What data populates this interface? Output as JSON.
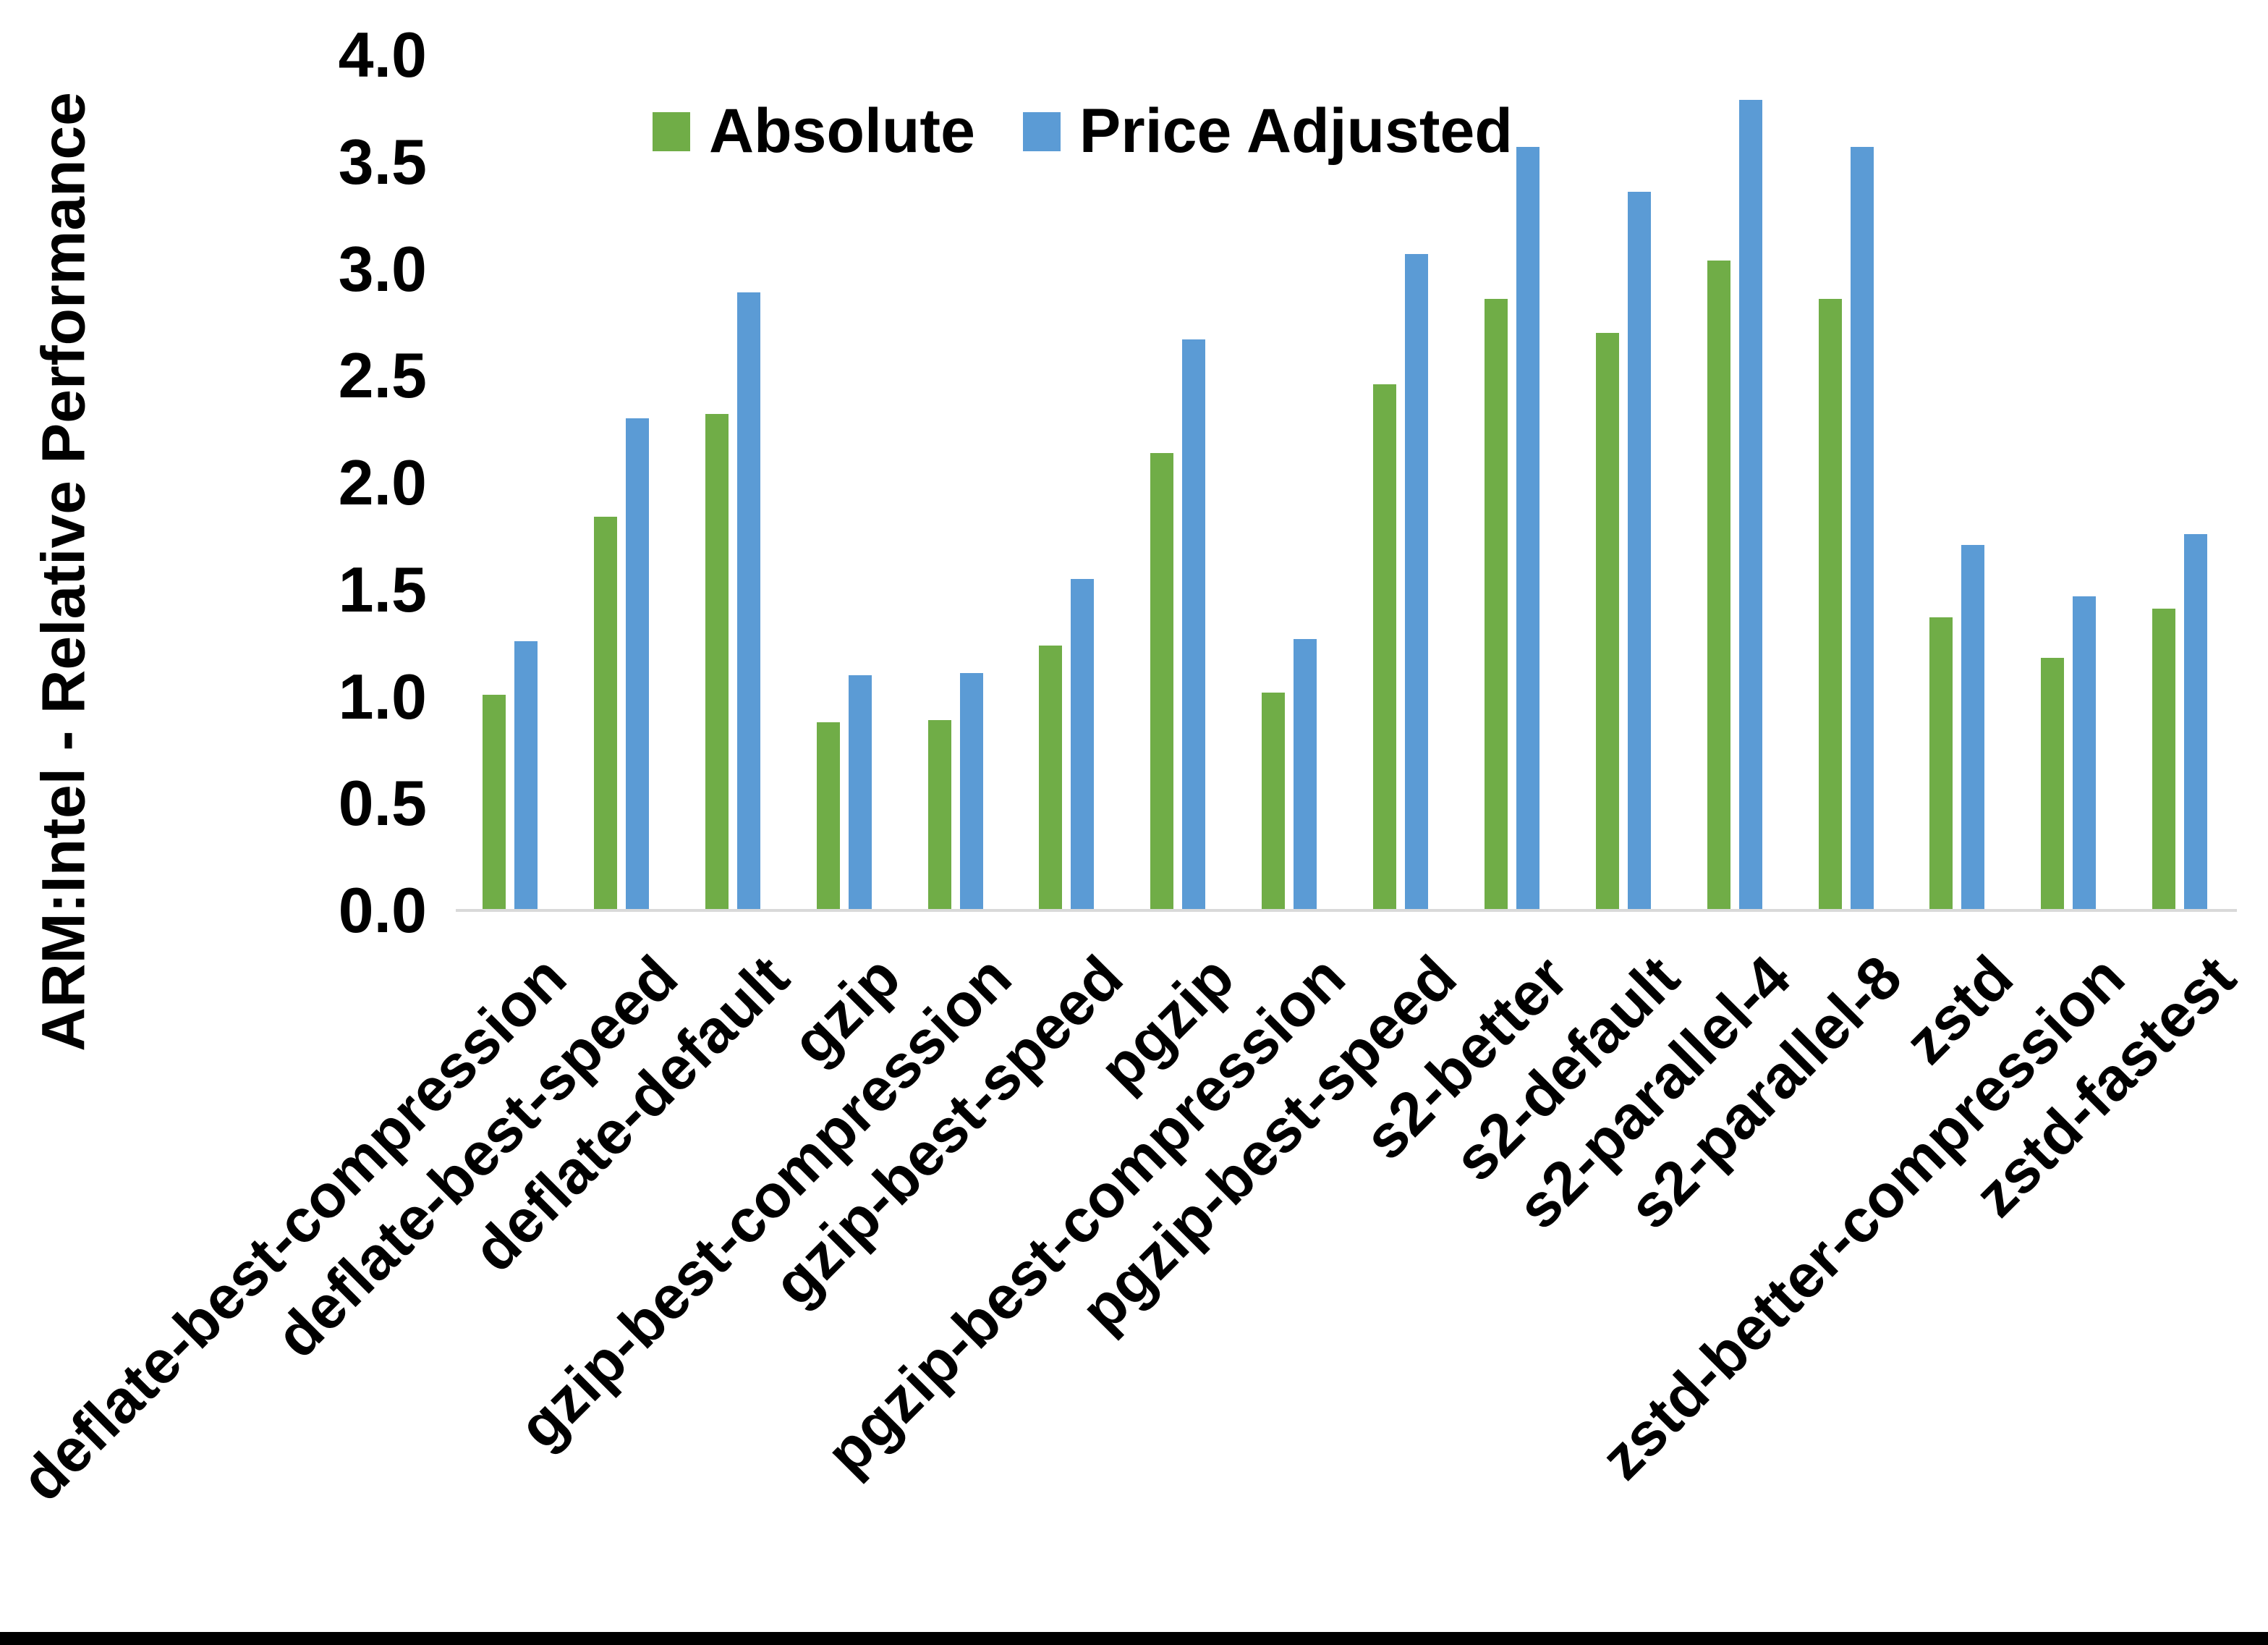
{
  "chart_data": {
    "type": "bar",
    "title": "",
    "ylabel": "ARM:Intel - Relative Performance",
    "xlabel": "",
    "ylim": [
      0.0,
      4.0
    ],
    "ytick_step": 0.5,
    "yticks": [
      "0.0",
      "0.5",
      "1.0",
      "1.5",
      "2.0",
      "2.5",
      "3.0",
      "3.5",
      "4.0"
    ],
    "grid": false,
    "legend_position": "top-center",
    "categories": [
      "deflate-best-compression",
      "deflate-best-speed",
      "deflate-default",
      "gzip",
      "gzip-best-compression",
      "gzip-best-speed",
      "pgzip",
      "pgzip-best-compression",
      "pgzip-best-speed",
      "s2-better",
      "s2-default",
      "s2-parallel-4",
      "s2-parallel-8",
      "zstd",
      "zstd-better-compression",
      "zstd-fastest"
    ],
    "series": [
      {
        "name": "Absolute",
        "color": "#70AD47",
        "values": [
          1.01,
          1.84,
          2.32,
          0.88,
          0.89,
          1.24,
          2.14,
          1.02,
          2.46,
          2.86,
          2.7,
          3.04,
          2.86,
          1.37,
          1.18,
          1.41
        ]
      },
      {
        "name": "Price Adjusted",
        "color": "#5B9BD5",
        "values": [
          1.26,
          2.3,
          2.89,
          1.1,
          1.11,
          1.55,
          2.67,
          1.27,
          3.07,
          3.57,
          3.36,
          3.79,
          3.57,
          1.71,
          1.47,
          1.76
        ]
      }
    ]
  },
  "colors": {
    "background": "#FFFFFF",
    "axis_line": "#D9D9D9",
    "text": "#000000",
    "bottom_border": "#000000"
  }
}
